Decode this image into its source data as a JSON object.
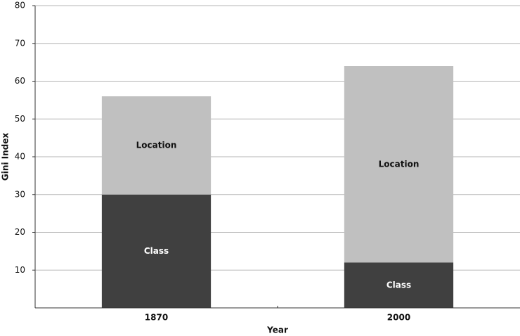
{
  "chart_data": {
    "type": "stacked-bar",
    "y_label": "Gini Index",
    "x_label": "Year",
    "categories": [
      "1870",
      "2000"
    ],
    "series": [
      {
        "name": "Class",
        "color": "#404040",
        "values": [
          30,
          12
        ]
      },
      {
        "name": "Location",
        "color": "#c0c0c0",
        "values": [
          26,
          52
        ]
      }
    ],
    "ylim": [
      0,
      80
    ],
    "yticks": [
      10,
      20,
      30,
      40,
      50,
      60,
      70,
      80
    ],
    "grid": true
  }
}
